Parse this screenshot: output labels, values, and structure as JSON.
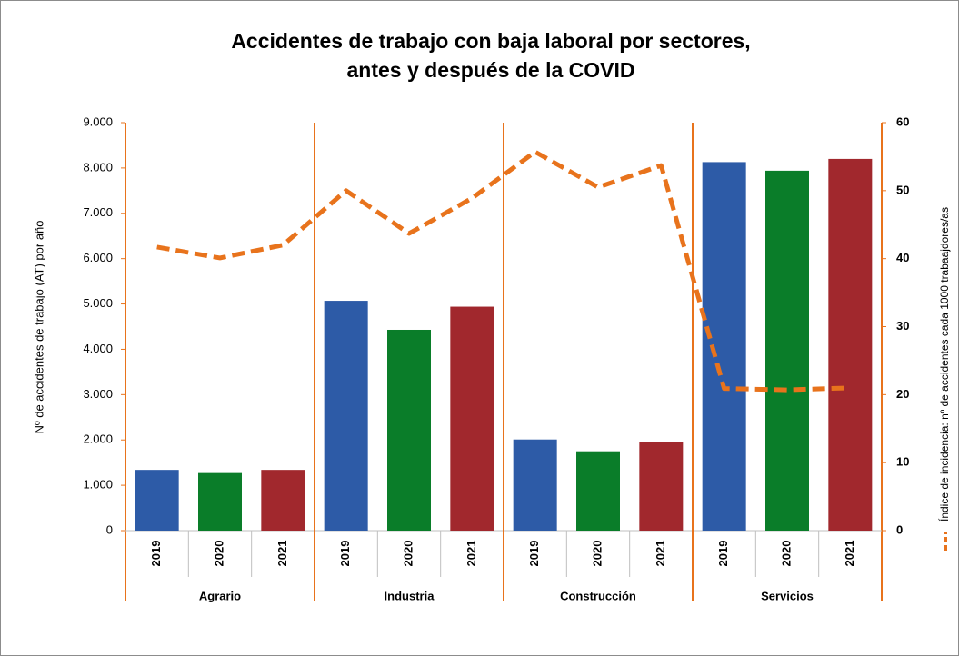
{
  "chart_data": {
    "type": "bar",
    "title": [
      "Accidentes de trabajo con baja laboral por sectores,",
      "antes y después de la  COVID"
    ],
    "y_label": "Nº de accidentes de trabajo (AT) por año",
    "groups": [
      "Agrario",
      "Industria",
      "Construcción",
      "Servicios"
    ],
    "categories": [
      "2019",
      "2020",
      "2021",
      "2019",
      "2020",
      "2021",
      "2019",
      "2020",
      "2021",
      "2019",
      "2020",
      "2021"
    ],
    "series": [
      {
        "type": "bar",
        "colors": [
          "#2d5ba7",
          "#0a7d29",
          "#a1282d"
        ],
        "values": [
          1340,
          1270,
          1340,
          5070,
          4430,
          4940,
          2010,
          1750,
          1960,
          8130,
          7940,
          8200
        ]
      },
      {
        "type": "line",
        "name": "Índice de incidencia: nº de accidentes cada 1000 trabaajdores/as",
        "color": "#e8731c",
        "axis": "y2",
        "dashed": true,
        "values": [
          41.7,
          40.1,
          42,
          50,
          43.7,
          48.9,
          55.7,
          50.5,
          53.7,
          20.9,
          20.7,
          21
        ]
      }
    ],
    "ylim": [
      0,
      9000
    ],
    "yticks": [
      0,
      {
        "value": 1000,
        "label": "1.000"
      },
      {
        "value": 2000,
        "label": "2.000"
      },
      {
        "value": 3000,
        "label": "3.000"
      },
      {
        "value": 4000,
        "label": "4.000"
      },
      {
        "value": 5000,
        "label": "5.000"
      },
      {
        "value": 6000,
        "label": "6.000"
      },
      {
        "value": 7000,
        "label": "7.000"
      },
      {
        "value": 8000,
        "label": "8.000"
      },
      {
        "value": 9000,
        "label": "9.000"
      }
    ],
    "y2lim": [
      0,
      60
    ],
    "y2ticks": [
      0,
      10,
      20,
      30,
      40,
      50,
      60
    ],
    "legend": "right"
  }
}
